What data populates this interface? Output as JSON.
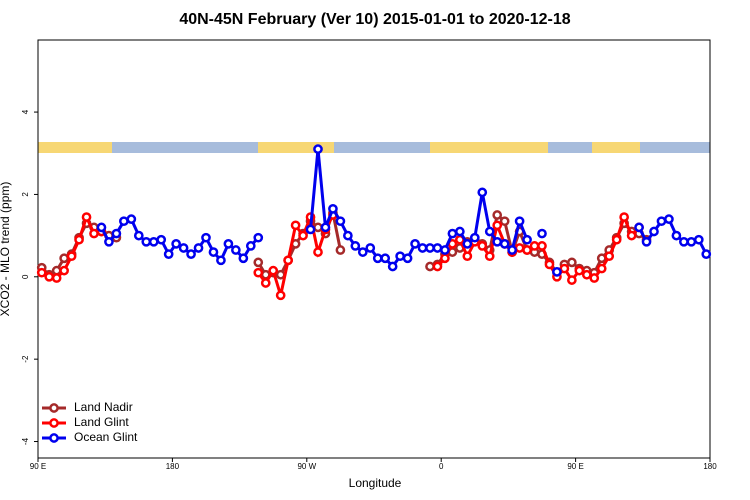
{
  "chart_data": {
    "type": "line",
    "title": "40N-45N February (Ver 10)   2015-01-01 to 2020-12-18",
    "x_label": "Longitude",
    "y_label": "XCO2 - MLO trend (ppm)",
    "xlim": [
      90,
      540
    ],
    "ylim": [
      -4.4,
      5.75
    ],
    "xticks": [
      {
        "value": 90,
        "label": "90 E"
      },
      180,
      {
        "value": 270,
        "label": "90 W"
      },
      {
        "value": 360,
        "label": "0"
      },
      {
        "value": 450,
        "label": "90 E"
      },
      {
        "value": 540,
        "label": "180"
      }
    ],
    "yticks": [
      -4,
      -2,
      0,
      2,
      4
    ],
    "grid": false,
    "legend": "bottom-left",
    "x": [
      92.5,
      97.5,
      102.5,
      107.5,
      112.5,
      117.5,
      122.5,
      127.5,
      132.5,
      137.5,
      142.5,
      147.5,
      152.5,
      157.5,
      162.5,
      167.5,
      172.5,
      177.5,
      182.5,
      187.5,
      192.5,
      197.5,
      202.5,
      207.5,
      212.5,
      217.5,
      222.5,
      227.5,
      232.5,
      237.5,
      242.5,
      247.5,
      252.5,
      257.5,
      262.5,
      267.5,
      272.5,
      277.5,
      282.5,
      287.5,
      292.5,
      297.5,
      302.5,
      307.5,
      312.5,
      317.5,
      322.5,
      327.5,
      332.5,
      337.5,
      342.5,
      347.5,
      352.5,
      357.5,
      362.5,
      367.5,
      372.5,
      377.5,
      382.5,
      387.5,
      392.5,
      397.5,
      402.5,
      407.5,
      412.5,
      417.5,
      422.5,
      427.5,
      432.5,
      437.5,
      442.5,
      447.5,
      452.5,
      457.5,
      462.5,
      467.5,
      472.5,
      477.5,
      482.5,
      487.5,
      492.5,
      497.5,
      502.5,
      507.5,
      512.5,
      517.5,
      522.5,
      527.5,
      532.5,
      537.5
    ],
    "series": [
      {
        "name": "Land Nadir",
        "color": "#a52a2a",
        "values": [
          0.22,
          0.05,
          0.15,
          0.45,
          0.55,
          0.95,
          1.3,
          1.2,
          1.1,
          1.0,
          0.95,
          null,
          null,
          null,
          null,
          null,
          null,
          null,
          null,
          null,
          null,
          null,
          null,
          null,
          null,
          null,
          null,
          null,
          null,
          0.35,
          0.05,
          0.1,
          0.05,
          0.4,
          0.8,
          1.05,
          1.35,
          1.2,
          1.05,
          1.55,
          0.65,
          null,
          null,
          null,
          null,
          null,
          null,
          null,
          null,
          null,
          null,
          null,
          0.25,
          0.3,
          0.55,
          0.6,
          0.7,
          0.85,
          0.9,
          0.8,
          0.65,
          1.5,
          1.35,
          0.6,
          1.1,
          0.65,
          0.6,
          0.55,
          0.35,
          0.1,
          0.3,
          0.35,
          0.2,
          0.15,
          0.1,
          0.45,
          0.65,
          0.95,
          1.3,
          1.1,
          1.05,
          0.9,
          null,
          null,
          null,
          null,
          null,
          null,
          null,
          null
        ]
      },
      {
        "name": "Land Glint",
        "color": "#ff0000",
        "values": [
          0.1,
          0.0,
          -0.03,
          0.15,
          0.5,
          0.9,
          1.45,
          1.05,
          1.1,
          null,
          null,
          null,
          null,
          null,
          null,
          null,
          null,
          null,
          null,
          null,
          null,
          null,
          null,
          null,
          null,
          null,
          null,
          null,
          null,
          0.1,
          -0.15,
          0.15,
          -0.45,
          0.4,
          1.25,
          1.0,
          1.45,
          0.6,
          1.15,
          1.5,
          null,
          null,
          null,
          null,
          null,
          null,
          null,
          null,
          null,
          null,
          null,
          null,
          null,
          0.25,
          0.45,
          0.8,
          0.9,
          0.5,
          0.85,
          0.75,
          0.5,
          1.25,
          0.8,
          0.6,
          0.7,
          0.65,
          0.75,
          0.75,
          0.3,
          0.0,
          0.2,
          -0.08,
          0.15,
          0.05,
          -0.03,
          0.2,
          0.5,
          0.9,
          1.45,
          1.0,
          1.2,
          null,
          null,
          null,
          null,
          null,
          null,
          null,
          null,
          null
        ]
      },
      {
        "name": "Ocean Glint",
        "color": "#0000ee",
        "values": [
          null,
          null,
          null,
          null,
          null,
          null,
          null,
          null,
          1.2,
          0.85,
          1.05,
          1.35,
          1.4,
          1.0,
          0.85,
          0.85,
          0.9,
          0.55,
          0.8,
          0.7,
          0.55,
          0.7,
          0.95,
          0.6,
          0.4,
          0.8,
          0.65,
          0.45,
          0.75,
          0.95,
          null,
          null,
          null,
          null,
          null,
          null,
          1.15,
          3.1,
          1.2,
          1.65,
          1.35,
          1.0,
          0.75,
          0.6,
          0.7,
          0.45,
          0.45,
          0.25,
          0.5,
          0.45,
          0.8,
          0.7,
          0.7,
          0.7,
          0.65,
          1.05,
          1.1,
          0.8,
          0.95,
          2.05,
          1.1,
          0.85,
          0.8,
          0.65,
          1.35,
          0.9,
          null,
          1.05,
          null,
          0.12,
          null,
          null,
          null,
          null,
          null,
          null,
          null,
          null,
          null,
          null,
          1.2,
          0.85,
          1.1,
          1.35,
          1.4,
          1.0,
          0.85,
          0.85,
          0.9,
          0.55
        ]
      }
    ]
  }
}
